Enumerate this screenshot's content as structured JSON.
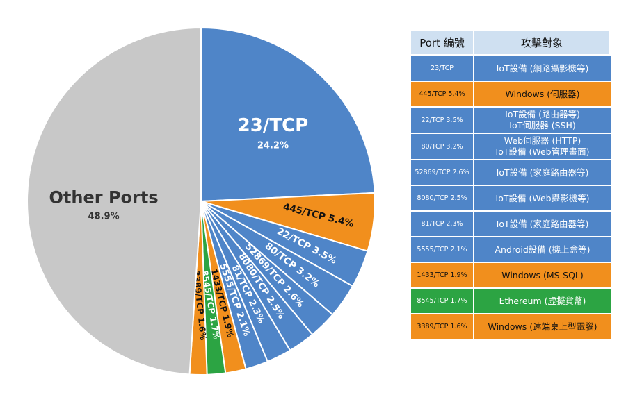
{
  "chart_data": {
    "type": "pie",
    "slices": [
      {
        "label": "23/TCP",
        "pct_label": "24.2%",
        "value": 24.2,
        "color": "#4f85c8"
      },
      {
        "label": "445/TCP 5.4%",
        "value": 5.4,
        "color": "#f18f1d"
      },
      {
        "label": "22/TCP 3.5%",
        "value": 3.5,
        "color": "#4f85c8"
      },
      {
        "label": "80/TCP 3.2%",
        "value": 3.2,
        "color": "#4f85c8"
      },
      {
        "label": "52869/TCP 2.6%",
        "value": 2.6,
        "color": "#4f85c8"
      },
      {
        "label": "8080/TCP 2.5%",
        "value": 2.5,
        "color": "#4f85c8"
      },
      {
        "label": "81/TCP 2.3%",
        "value": 2.3,
        "color": "#4f85c8"
      },
      {
        "label": "5555/TCP 2.1%",
        "value": 2.1,
        "color": "#4f85c8"
      },
      {
        "label": "1433/TCP 1.9%",
        "value": 1.9,
        "color": "#f18f1d"
      },
      {
        "label": "8545/TCP 1.7%",
        "value": 1.7,
        "color": "#2ca443"
      },
      {
        "label": "3389/TCP 1.6%",
        "value": 1.6,
        "color": "#f18f1d"
      },
      {
        "label": "Other Ports",
        "pct_label": "48.9%",
        "value": 48.9,
        "color": "#c8c8c8"
      }
    ]
  },
  "table": {
    "headers": [
      "Port 編號",
      "攻擊對象"
    ],
    "rows": [
      {
        "port": "23/TCP",
        "target": [
          "IoT設備 (網路攝影機等)"
        ],
        "category": "blue"
      },
      {
        "port": "445/TCP 5.4%",
        "target": [
          "Windows (伺服器)"
        ],
        "category": "orange"
      },
      {
        "port": "22/TCP 3.5%",
        "target": [
          "IoT設備 (路由器等)",
          "IoT伺服器 (SSH)"
        ],
        "category": "blue"
      },
      {
        "port": "80/TCP 3.2%",
        "target": [
          "Web伺服器 (HTTP)",
          "IoT設備 (Web管理畫面)"
        ],
        "category": "blue"
      },
      {
        "port": "52869/TCP 2.6%",
        "target": [
          "IoT設備 (家庭路由器等)"
        ],
        "category": "blue"
      },
      {
        "port": "8080/TCP 2.5%",
        "target": [
          "IoT設備 (Web攝影機等)"
        ],
        "category": "blue"
      },
      {
        "port": "81/TCP 2.3%",
        "target": [
          "IoT設備 (家庭路由器等)"
        ],
        "category": "blue"
      },
      {
        "port": "5555/TCP 2.1%",
        "target": [
          "Android設備 (機上盒等)"
        ],
        "category": "blue"
      },
      {
        "port": "1433/TCP 1.9%",
        "target": [
          "Windows (MS-SQL)"
        ],
        "category": "orange"
      },
      {
        "port": "8545/TCP 1.7%",
        "target": [
          "Ethereum (虛擬貨幣)"
        ],
        "category": "green"
      },
      {
        "port": "3389/TCP 1.6%",
        "target": [
          "Windows (遠端桌上型電腦)"
        ],
        "category": "orange"
      }
    ]
  }
}
